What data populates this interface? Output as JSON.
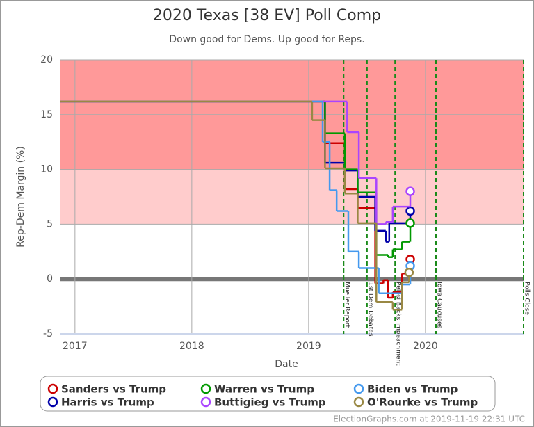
{
  "chart_data": {
    "type": "step",
    "title": "2020 Texas [38 EV] Poll Comp",
    "subtitle": "Down good for Dems. Up good for Reps.",
    "y_label": "Rep-Dem Margin (%)",
    "x_label": "Date",
    "footer": "ElectionGraphs.com at 2019-11-19 22:31 UTC",
    "xlim": [
      2016.87,
      2020.84
    ],
    "xticks": [
      2017,
      2018,
      2019,
      2020
    ],
    "ylim": [
      -5,
      20
    ],
    "yticks": [
      -5,
      0,
      5,
      10,
      15,
      20
    ],
    "grid": true,
    "zero_line": true,
    "legend": "bottom",
    "bands": [
      {
        "from": 10,
        "to": 20,
        "color": "#ff9999"
      },
      {
        "from": 5,
        "to": 10,
        "color": "#ffcccc"
      }
    ],
    "events": [
      {
        "x": 2019.3,
        "label": "Mueller Report"
      },
      {
        "x": 2019.5,
        "label": "1st Dem Debates"
      },
      {
        "x": 2019.74,
        "label": "Pelosi Backs Impeachment"
      },
      {
        "x": 2020.09,
        "label": "Iowa Caucuses"
      },
      {
        "x": 2020.84,
        "label": "Polls Close"
      }
    ],
    "series": [
      {
        "name": "Sanders vs Trump",
        "color": "#cc0000",
        "x": [
          2016.87,
          2019.14,
          2019.31,
          2019.42,
          2019.57,
          2019.64,
          2019.68,
          2019.72,
          2019.8,
          2019.87
        ],
        "values": [
          16.2,
          12.4,
          8.2,
          6.5,
          -0.4,
          -0.1,
          -1.7,
          -1.2,
          0.5,
          1.8
        ]
      },
      {
        "name": "Harris vs Trump",
        "color": "#0000aa",
        "x": [
          2016.87,
          2019.14,
          2019.31,
          2019.42,
          2019.57,
          2019.66,
          2019.69,
          2019.87
        ],
        "values": [
          16.2,
          10.6,
          9.9,
          7.5,
          4.4,
          3.4,
          5.1,
          6.2
        ]
      },
      {
        "name": "Warren vs Trump",
        "color": "#009900",
        "x": [
          2016.87,
          2019.14,
          2019.31,
          2019.42,
          2019.58,
          2019.68,
          2019.72,
          2019.8,
          2019.87
        ],
        "values": [
          16.2,
          13.3,
          10.0,
          7.9,
          2.2,
          2.0,
          2.7,
          3.4,
          5.1
        ]
      },
      {
        "name": "Buttigieg vs Trump",
        "color": "#aa44ff",
        "x": [
          2016.87,
          2019.33,
          2019.43,
          2019.58,
          2019.66,
          2019.72,
          2019.87
        ],
        "values": [
          16.2,
          13.4,
          9.2,
          5.0,
          5.2,
          6.6,
          8.0
        ]
      },
      {
        "name": "Biden vs Trump",
        "color": "#4499ee",
        "x": [
          2016.87,
          2019.12,
          2019.18,
          2019.24,
          2019.34,
          2019.43,
          2019.6,
          2019.8,
          2019.87
        ],
        "values": [
          16.2,
          12.5,
          8.1,
          6.2,
          2.5,
          1.0,
          -1.3,
          -0.5,
          1.2
        ]
      },
      {
        "name": "O'Rourke vs Trump",
        "color": "#998844",
        "x": [
          2016.87,
          2019.03,
          2019.14,
          2019.31,
          2019.42,
          2019.58,
          2019.72,
          2019.8,
          2019.86
        ],
        "values": [
          16.2,
          14.5,
          10.1,
          7.8,
          5.1,
          -2.1,
          -2.8,
          -0.3,
          0.6
        ]
      }
    ]
  }
}
